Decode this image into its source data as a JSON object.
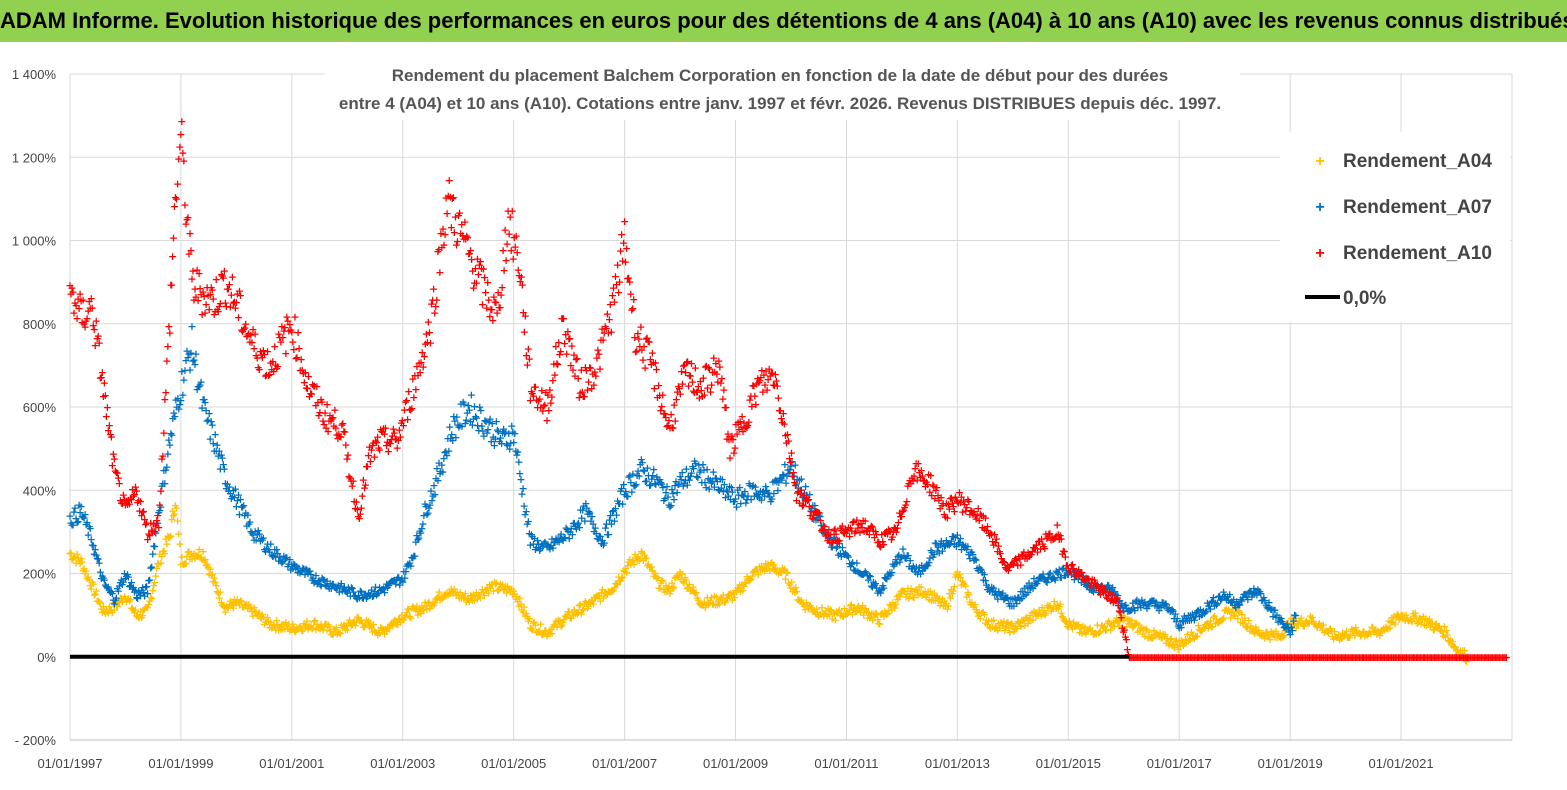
{
  "header": {
    "title": "ADAM Informe. Evolution historique des performances en euros pour des détentions de 4 ans (A04) à 10 ans (A10) avec les revenus connus distribués",
    "banner_color": "#92d050"
  },
  "chart_data": {
    "type": "scatter",
    "subtitle_lines": [
      "Rendement du placement Balchem Corporation en fonction de la date de début pour des durées",
      "entre 4 (A04) et 10 ans (A10).  Cotations entre janv. 1997 et févr. 2026. Revenus DISTRIBUES depuis déc. 1997."
    ],
    "y_axis": {
      "min": -200,
      "max": 1400,
      "step": 200,
      "tick_labels": [
        "- 200%",
        "0%",
        "200%",
        "400%",
        "600%",
        "800%",
        "1 000%",
        "1 200%",
        "1 400%"
      ]
    },
    "x_axis": {
      "min": 1997.0,
      "max": 2023.0,
      "tick_values": [
        1997,
        1999,
        2001,
        2003,
        2005,
        2007,
        2009,
        2011,
        2013,
        2015,
        2017,
        2019,
        2021
      ],
      "tick_labels": [
        "01/01/1997",
        "01/01/1999",
        "01/01/2001",
        "01/01/2003",
        "01/01/2005",
        "01/01/2007",
        "01/01/2009",
        "01/01/2011",
        "01/01/2013",
        "01/01/2015",
        "01/01/2017",
        "01/01/2019",
        "01/01/2021"
      ]
    },
    "grid": true,
    "legend_position": "top-right",
    "series": [
      {
        "name": "Rendement_A04",
        "color": "#ffc000",
        "marker": "+",
        "x": [
          1997.0,
          1997.2,
          1997.4,
          1997.6,
          1997.8,
          1998.0,
          1998.2,
          1998.4,
          1998.6,
          1998.8,
          1998.9,
          1999.0,
          1999.2,
          1999.4,
          1999.6,
          1999.8,
          2000.0,
          2000.3,
          2000.6,
          2001.0,
          2001.4,
          2001.8,
          2002.2,
          2002.6,
          2003.0,
          2003.4,
          2003.8,
          2004.2,
          2004.6,
          2005.0,
          2005.3,
          2005.6,
          2006.0,
          2006.4,
          2006.8,
          2007.0,
          2007.3,
          2007.6,
          2007.8,
          2008.0,
          2008.4,
          2008.8,
          2009.0,
          2009.3,
          2009.6,
          2009.9,
          2010.2,
          2010.5,
          2010.8,
          2011.2,
          2011.6,
          2012.0,
          2012.4,
          2012.8,
          2013.0,
          2013.3,
          2013.6,
          2014.0,
          2014.4,
          2014.8,
          2015.0,
          2015.3,
          2015.6,
          2016.0,
          2016.4,
          2016.8,
          2017.0,
          2017.4,
          2017.8,
          2018.0,
          2018.4,
          2018.8,
          2019.0,
          2019.4,
          2019.8,
          2020.2,
          2020.6,
          2021.0,
          2021.4,
          2021.8,
          2022.0,
          2022.2
        ],
        "values": [
          250,
          230,
          170,
          110,
          120,
          150,
          100,
          110,
          230,
          290,
          380,
          230,
          250,
          250,
          180,
          120,
          130,
          110,
          80,
          70,
          80,
          60,
          90,
          60,
          100,
          120,
          160,
          140,
          170,
          160,
          80,
          60,
          100,
          130,
          170,
          210,
          250,
          180,
          160,
          200,
          130,
          140,
          150,
          200,
          220,
          200,
          130,
          110,
          100,
          120,
          90,
          150,
          160,
          120,
          200,
          120,
          80,
          70,
          100,
          130,
          80,
          60,
          70,
          90,
          60,
          40,
          30,
          70,
          100,
          110,
          60,
          50,
          80,
          90,
          50,
          60,
          60,
          100,
          90,
          60,
          20,
          0
        ]
      },
      {
        "name": "Rendement_A07",
        "color": "#0070c0",
        "marker": "+",
        "x": [
          1997.0,
          1997.2,
          1997.4,
          1997.6,
          1997.8,
          1998.0,
          1998.2,
          1998.4,
          1998.6,
          1998.8,
          1999.0,
          1999.2,
          1999.4,
          1999.6,
          1999.8,
          2000.0,
          2000.3,
          2000.6,
          2001.0,
          2001.4,
          2001.8,
          2002.2,
          2002.6,
          2003.0,
          2003.2,
          2003.4,
          2003.6,
          2003.9,
          2004.2,
          2004.5,
          2004.8,
          2005.0,
          2005.3,
          2005.6,
          2006.0,
          2006.3,
          2006.6,
          2007.0,
          2007.3,
          2007.6,
          2007.8,
          2008.0,
          2008.3,
          2008.6,
          2009.0,
          2009.3,
          2009.6,
          2009.8,
          2010.0,
          2010.3,
          2010.6,
          2011.0,
          2011.3,
          2011.6,
          2012.0,
          2012.3,
          2012.6,
          2013.0,
          2013.3,
          2013.6,
          2014.0,
          2014.4,
          2014.8,
          2015.0,
          2015.4,
          2015.8,
          2016.0,
          2016.4,
          2016.8,
          2017.0,
          2017.4,
          2017.8,
          2018.0,
          2018.4,
          2018.8,
          2019.0,
          2019.1
        ],
        "values": [
          330,
          350,
          280,
          180,
          140,
          200,
          150,
          160,
          350,
          520,
          650,
          750,
          600,
          520,
          430,
          380,
          300,
          260,
          220,
          190,
          170,
          150,
          160,
          190,
          250,
          350,
          420,
          550,
          600,
          560,
          520,
          540,
          280,
          260,
          300,
          350,
          280,
          400,
          450,
          420,
          380,
          420,
          450,
          420,
          380,
          400,
          390,
          420,
          460,
          380,
          300,
          240,
          200,
          160,
          250,
          200,
          260,
          280,
          240,
          160,
          130,
          180,
          200,
          210,
          170,
          160,
          120,
          130,
          120,
          80,
          110,
          150,
          130,
          160,
          90,
          60,
          100
        ]
      },
      {
        "name": "Rendement_A10",
        "color": "#ff0000",
        "marker": "+",
        "x": [
          1997.0,
          1997.2,
          1997.4,
          1997.6,
          1997.8,
          1998.0,
          1998.2,
          1998.4,
          1998.6,
          1998.8,
          1998.9,
          1999.0,
          1999.2,
          1999.4,
          1999.6,
          1999.8,
          2000.0,
          2000.3,
          2000.6,
          2001.0,
          2001.3,
          2001.6,
          2001.9,
          2002.2,
          2002.4,
          2002.6,
          2002.9,
          2003.2,
          2003.5,
          2003.8,
          2004.1,
          2004.4,
          2004.7,
          2004.9,
          2005.1,
          2005.3,
          2005.6,
          2005.9,
          2006.2,
          2006.5,
          2006.8,
          2007.0,
          2007.2,
          2007.5,
          2007.8,
          2008.1,
          2008.4,
          2008.7,
          2008.9,
          2009.1,
          2009.4,
          2009.7,
          2009.9,
          2010.1,
          2010.4,
          2010.7,
          2011.0,
          2011.3,
          2011.6,
          2011.9,
          2012.2,
          2012.5,
          2012.8,
          2013.0,
          2013.3,
          2013.6,
          2013.9,
          2014.2,
          2014.5,
          2014.8,
          2015.0,
          2015.3,
          2015.6,
          2015.9,
          2016.1,
          2016.5,
          2017.0,
          2018.0,
          2019.0,
          2020.0,
          2021.0,
          2022.0,
          2022.9
        ],
        "values": [
          880,
          820,
          840,
          650,
          450,
          350,
          400,
          300,
          330,
          820,
          1100,
          1250,
          900,
          870,
          860,
          900,
          850,
          750,
          700,
          800,
          650,
          580,
          550,
          340,
          480,
          520,
          520,
          650,
          800,
          1100,
          1000,
          900,
          820,
          1050,
          950,
          650,
          600,
          800,
          650,
          700,
          850,
          1000,
          780,
          700,
          550,
          680,
          650,
          700,
          500,
          550,
          650,
          680,
          550,
          400,
          350,
          290,
          300,
          320,
          280,
          300,
          450,
          420,
          350,
          380,
          350,
          300,
          210,
          240,
          270,
          300,
          220,
          190,
          160,
          130,
          0,
          0,
          0,
          0,
          0,
          0,
          0,
          0,
          0
        ]
      },
      {
        "name": "0,0%",
        "color": "#000000",
        "marker": "line",
        "x": [
          1997.0,
          2016.1
        ],
        "values": [
          0,
          0
        ]
      }
    ]
  }
}
